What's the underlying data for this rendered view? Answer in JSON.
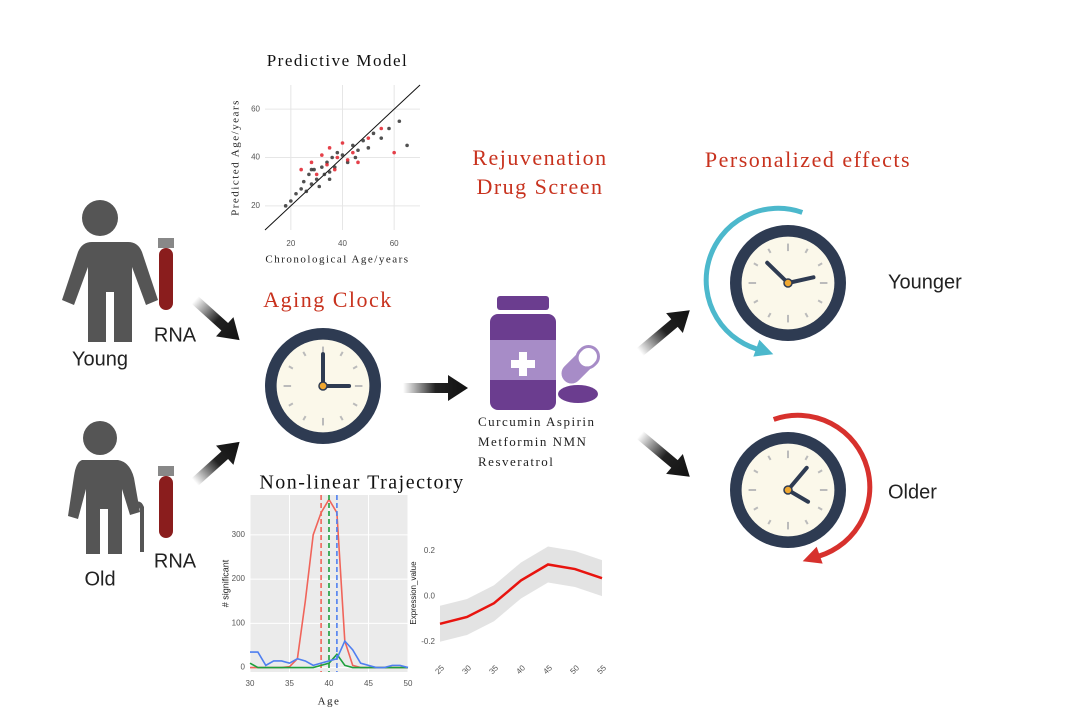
{
  "labels": {
    "young": "Young",
    "old": "Old",
    "rna_top": "RNA",
    "rna_bottom": "RNA",
    "aging_clock": "Aging Clock",
    "drug_screen": [
      "Rejuvenation",
      "Drug Screen"
    ],
    "drugs": [
      "Curcumin Aspirin",
      "Metformin NMN",
      "Resveratrol"
    ],
    "personalized": "Personalized effects",
    "younger": "Younger",
    "older": "Older",
    "trajectory_title": "Non-linear Trajectory"
  },
  "predictive_model": {
    "type": "scatter",
    "title": "Predictive Model",
    "x_label": "Chronological Age/years",
    "y_label": "Predicted Age/years",
    "xlim": [
      10,
      70
    ],
    "ylim": [
      10,
      70
    ],
    "xticks": [
      20,
      40,
      60
    ],
    "yticks": [
      20,
      40,
      60
    ],
    "series": [
      {
        "color": "#333333",
        "x": [
          18,
          20,
          22,
          24,
          25,
          26,
          27,
          28,
          29,
          30,
          31,
          32,
          33,
          34,
          35,
          36,
          37,
          38,
          40,
          42,
          44,
          46,
          48,
          50,
          52,
          55,
          58,
          62,
          65,
          35,
          28,
          45
        ],
        "values": [
          20,
          22,
          25,
          27,
          30,
          26,
          33,
          29,
          35,
          31,
          28,
          36,
          33,
          38,
          34,
          40,
          36,
          42,
          41,
          38,
          45,
          43,
          47,
          44,
          50,
          48,
          52,
          55,
          45,
          31,
          35,
          40
        ]
      },
      {
        "color": "#e0202a",
        "x": [
          24,
          28,
          30,
          32,
          34,
          35,
          37,
          38,
          40,
          42,
          44,
          46,
          50,
          55,
          60
        ],
        "values": [
          35,
          38,
          33,
          41,
          37,
          44,
          35,
          40,
          46,
          39,
          42,
          38,
          48,
          52,
          42
        ]
      }
    ]
  },
  "significant_chart": {
    "type": "line",
    "x_label": "Age",
    "y_label": "# significant",
    "x": [
      30,
      31,
      32,
      33,
      34,
      35,
      36,
      37,
      38,
      39,
      40,
      41,
      42,
      43,
      44,
      45,
      46,
      47,
      48,
      49,
      50
    ],
    "xlim": [
      30,
      50
    ],
    "ylim": [
      -10,
      390
    ],
    "xticks": [
      30,
      35,
      40,
      45,
      50
    ],
    "yticks": [
      0,
      100,
      200,
      300
    ],
    "series": [
      {
        "color": "#f0645a",
        "marker_x": 39,
        "values": [
          0,
          0,
          0,
          0,
          0,
          2,
          20,
          150,
          300,
          350,
          380,
          350,
          60,
          5,
          0,
          0,
          0,
          0,
          0,
          0,
          0
        ]
      },
      {
        "color": "#1ea03c",
        "marker_x": 40,
        "values": [
          10,
          0,
          0,
          0,
          0,
          0,
          0,
          0,
          0,
          5,
          10,
          30,
          5,
          0,
          0,
          0,
          0,
          0,
          0,
          0,
          0
        ]
      },
      {
        "color": "#4f7ff0",
        "marker_x": 41,
        "values": [
          35,
          35,
          5,
          15,
          15,
          10,
          20,
          15,
          5,
          10,
          15,
          20,
          60,
          40,
          10,
          5,
          0,
          0,
          5,
          5,
          0
        ]
      }
    ]
  },
  "expression_chart": {
    "type": "line",
    "y_label": "Expression_value",
    "x": [
      25,
      30,
      35,
      40,
      45,
      50,
      55
    ],
    "xlim": [
      25,
      55
    ],
    "ylim": [
      -0.27,
      0.3
    ],
    "xticks": [
      25,
      30,
      35,
      40,
      45,
      50,
      55
    ],
    "yticks": [
      -0.2,
      {
        "value": 0,
        "label": "0.0"
      },
      0.2
    ],
    "series": [
      {
        "color": "#e8140f",
        "values": [
          -0.12,
          -0.09,
          -0.03,
          0.07,
          0.14,
          0.12,
          0.08
        ]
      }
    ]
  }
}
